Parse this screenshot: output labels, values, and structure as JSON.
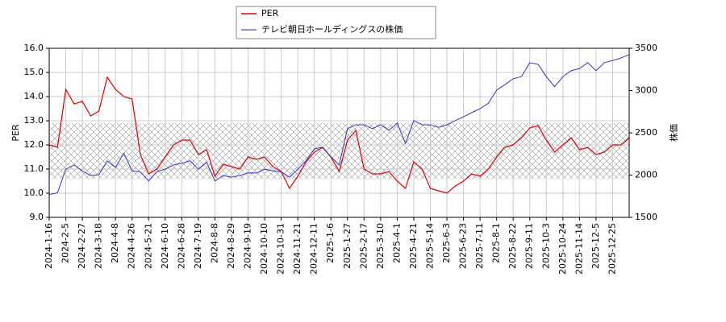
{
  "chart_data": {
    "type": "line",
    "y_label": "PER",
    "y2_label": "株価",
    "categories": [
      "2024-1-16",
      null,
      "2024-2-5",
      null,
      "2024-2-27",
      null,
      "2024-3-18",
      null,
      "2024-4-8",
      null,
      "2024-4-26",
      null,
      "2024-5-21",
      null,
      "2024-6-10",
      null,
      "2024-6-28",
      null,
      "2024-7-19",
      null,
      "2024-8-8",
      null,
      "2024-8-29",
      null,
      "2024-9-19",
      null,
      "2024-10-10",
      null,
      "2024-10-31",
      null,
      "2024-11-21",
      null,
      "2024-12-11",
      null,
      "2025-1-6",
      null,
      "2025-1-27",
      null,
      "2025-2-17",
      null,
      "2025-3-10",
      null,
      "2025-4-1",
      null,
      "2025-4-21",
      null,
      "2025-5-14",
      null,
      "2025-6-3",
      null,
      "2025-6-23",
      null,
      "2025-7-11",
      null,
      "2025-8-1",
      null,
      "2025-8-22",
      null,
      "2025-9-11",
      null,
      "2025-10-3",
      null,
      "2025-10-24",
      null,
      "2025-11-14",
      null,
      "2025-12-5",
      null,
      "2025-12-25",
      null,
      null
    ],
    "series": [
      {
        "name": "PER",
        "color": "#dd0000",
        "axis": "y",
        "values": [
          12.0,
          11.9,
          14.3,
          13.7,
          13.8,
          13.2,
          13.4,
          14.8,
          14.3,
          14.0,
          13.9,
          11.6,
          10.8,
          11.0,
          11.5,
          12.0,
          12.2,
          12.2,
          11.6,
          11.8,
          10.7,
          11.2,
          11.1,
          11.0,
          11.5,
          11.4,
          11.5,
          11.1,
          10.9,
          10.2,
          10.7,
          11.3,
          11.7,
          11.9,
          11.5,
          10.9,
          12.2,
          12.6,
          11.0,
          10.8,
          10.8,
          10.9,
          10.5,
          10.2,
          11.3,
          11.0,
          10.2,
          10.1,
          10.0,
          10.3,
          10.5,
          10.8,
          10.7,
          11.0,
          11.5,
          11.9,
          12.0,
          12.3,
          12.7,
          12.8,
          12.2,
          11.7,
          12.0,
          12.3,
          11.8,
          11.9,
          11.6,
          11.7,
          12.0,
          12.0,
          12.3
        ]
      },
      {
        "name": "テレビ朝日ホールディングスの株価",
        "color": "#2222cc",
        "axis": "y2",
        "values": [
          1770,
          1790,
          2070,
          2120,
          2050,
          1995,
          2005,
          2170,
          2090,
          2260,
          2050,
          2040,
          1930,
          2040,
          2070,
          2120,
          2140,
          2170,
          2070,
          2150,
          1930,
          1995,
          1975,
          1995,
          2025,
          2025,
          2070,
          2050,
          2040,
          1975,
          2070,
          2170,
          2310,
          2330,
          2215,
          2120,
          2550,
          2595,
          2595,
          2550,
          2595,
          2530,
          2615,
          2375,
          2645,
          2595,
          2595,
          2565,
          2595,
          2645,
          2690,
          2740,
          2785,
          2850,
          3005,
          3070,
          3140,
          3165,
          3330,
          3310,
          3165,
          3045,
          3165,
          3235,
          3260,
          3330,
          3235,
          3330,
          3355,
          3385,
          3425
        ]
      }
    ],
    "band": [
      10.6,
      12.9
    ],
    "ylim": [
      9,
      16
    ],
    "yticks": [
      {
        "value": 9,
        "label": "9.0"
      },
      {
        "value": 10,
        "label": "10.0"
      },
      {
        "value": 11,
        "label": "11.0"
      },
      {
        "value": 12,
        "label": "12.0"
      },
      {
        "value": 13,
        "label": "13.0"
      },
      {
        "value": 14,
        "label": "14.0"
      },
      {
        "value": 15,
        "label": "15.0"
      },
      {
        "value": 16,
        "label": "16.0"
      }
    ],
    "y2lim": [
      1500,
      3500
    ],
    "y2ticks": [
      1500,
      2000,
      2500,
      3000,
      3500
    ],
    "grid": true
  }
}
